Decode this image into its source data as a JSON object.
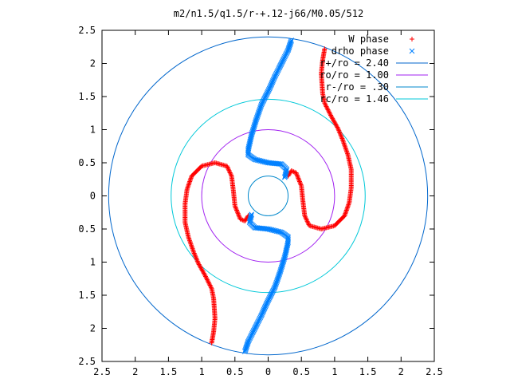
{
  "chart_data": {
    "type": "scatter",
    "title": "m2/n1.5/q1.5/r-+.12-j66/M0.05/512",
    "xlim": [
      -2.5,
      2.5
    ],
    "ylim": [
      -2.5,
      2.5
    ],
    "xticks": [
      -2.5,
      -2,
      -1.5,
      -1,
      -0.5,
      0,
      0.5,
      1,
      1.5,
      2,
      2.5
    ],
    "yticks": [
      -2.5,
      -2,
      -1.5,
      -1,
      -0.5,
      0,
      0.5,
      1,
      1.5,
      2,
      2.5
    ],
    "xtick_labels": [
      "2.5",
      "2",
      "1.5",
      "1",
      "0.5",
      "0",
      "0.5",
      "1",
      "1.5",
      "2",
      "2.5"
    ],
    "ytick_labels": [
      "2.5",
      "2",
      "1.5",
      "1",
      "0.5",
      "0",
      "0.5",
      "1",
      "1.5",
      "2",
      "2.5"
    ],
    "grid": false,
    "legend_position": "top-right",
    "series": [
      {
        "name": "W phase",
        "kind": "points",
        "marker": "+",
        "color": "#ff0000",
        "arms": [
          [
            [
              0.85,
              2.22
            ],
            [
              0.82,
              2.05
            ],
            [
              0.8,
              1.85
            ],
            [
              0.82,
              1.55
            ],
            [
              0.85,
              1.4
            ],
            [
              0.95,
              1.2
            ],
            [
              1.05,
              1.02
            ],
            [
              1.12,
              0.85
            ],
            [
              1.2,
              0.62
            ],
            [
              1.25,
              0.4
            ],
            [
              1.25,
              0.12
            ],
            [
              1.22,
              -0.1
            ],
            [
              1.15,
              -0.3
            ],
            [
              1.0,
              -0.45
            ],
            [
              0.8,
              -0.5
            ],
            [
              0.62,
              -0.45
            ],
            [
              0.55,
              -0.3
            ],
            [
              0.52,
              -0.05
            ],
            [
              0.5,
              0.15
            ],
            [
              0.42,
              0.35
            ],
            [
              0.35,
              0.38
            ],
            [
              0.3,
              0.3
            ]
          ],
          [
            [
              -0.85,
              -2.22
            ],
            [
              -0.82,
              -2.05
            ],
            [
              -0.8,
              -1.85
            ],
            [
              -0.82,
              -1.55
            ],
            [
              -0.85,
              -1.4
            ],
            [
              -0.95,
              -1.2
            ],
            [
              -1.05,
              -1.02
            ],
            [
              -1.12,
              -0.85
            ],
            [
              -1.2,
              -0.62
            ],
            [
              -1.25,
              -0.4
            ],
            [
              -1.25,
              -0.12
            ],
            [
              -1.22,
              0.1
            ],
            [
              -1.15,
              0.3
            ],
            [
              -1.0,
              0.45
            ],
            [
              -0.8,
              0.5
            ],
            [
              -0.62,
              0.45
            ],
            [
              -0.55,
              0.3
            ],
            [
              -0.52,
              0.05
            ],
            [
              -0.5,
              -0.15
            ],
            [
              -0.42,
              -0.35
            ],
            [
              -0.35,
              -0.38
            ],
            [
              -0.3,
              -0.3
            ]
          ]
        ]
      },
      {
        "name": "drho phase",
        "kind": "points",
        "marker": "x",
        "color": "#0080ff",
        "arms": [
          [
            [
              0.35,
              2.35
            ],
            [
              0.3,
              2.2
            ],
            [
              0.2,
              2.0
            ],
            [
              0.1,
              1.8
            ],
            [
              0.02,
              1.62
            ],
            [
              -0.1,
              1.38
            ],
            [
              -0.18,
              1.15
            ],
            [
              -0.25,
              0.92
            ],
            [
              -0.3,
              0.7
            ],
            [
              -0.3,
              0.62
            ],
            [
              -0.2,
              0.55
            ],
            [
              0.0,
              0.5
            ],
            [
              0.2,
              0.48
            ],
            [
              0.28,
              0.4
            ],
            [
              0.25,
              0.28
            ]
          ],
          [
            [
              -0.35,
              -2.35
            ],
            [
              -0.3,
              -2.2
            ],
            [
              -0.2,
              -2.0
            ],
            [
              -0.1,
              -1.8
            ],
            [
              -0.02,
              -1.62
            ],
            [
              0.1,
              -1.38
            ],
            [
              0.18,
              -1.15
            ],
            [
              0.25,
              -0.92
            ],
            [
              0.3,
              -0.7
            ],
            [
              0.3,
              -0.62
            ],
            [
              0.2,
              -0.55
            ],
            [
              0.0,
              -0.5
            ],
            [
              -0.2,
              -0.48
            ],
            [
              -0.28,
              -0.4
            ],
            [
              -0.25,
              -0.28
            ]
          ]
        ]
      },
      {
        "name": "r+/ro = 2.40",
        "kind": "circle",
        "radius": 2.4,
        "color": "#0066cc"
      },
      {
        "name": "ro/ro = 1.00",
        "kind": "circle",
        "radius": 1.0,
        "color": "#a020f0"
      },
      {
        "name": "r-/ro = .30",
        "kind": "circle",
        "radius": 0.3,
        "color": "#0088cc"
      },
      {
        "name": "rc/ro = 1.46",
        "kind": "circle",
        "radius": 1.46,
        "color": "#00c8d8"
      }
    ]
  }
}
